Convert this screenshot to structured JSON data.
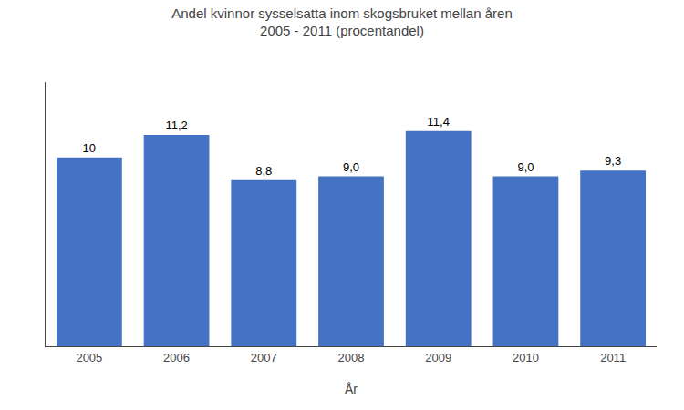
{
  "chart_data": {
    "type": "bar",
    "title": "Andel kvinnor sysselsatta inom skogsbruket mellan åren\n2005 - 2011 (procentandel)",
    "xlabel": "År",
    "categories": [
      "2005",
      "2006",
      "2007",
      "2008",
      "2009",
      "2010",
      "2011"
    ],
    "values": [
      10.0,
      11.2,
      8.8,
      9.0,
      11.4,
      9.0,
      9.3
    ],
    "value_labels": [
      "10",
      "11,2",
      "8,8",
      "9,0",
      "11,4",
      "9,0",
      "9,3"
    ],
    "data_labels": true,
    "color": "#4472C4",
    "ylim": [
      0,
      14
    ],
    "tick_labels": "x",
    "grid": false
  }
}
